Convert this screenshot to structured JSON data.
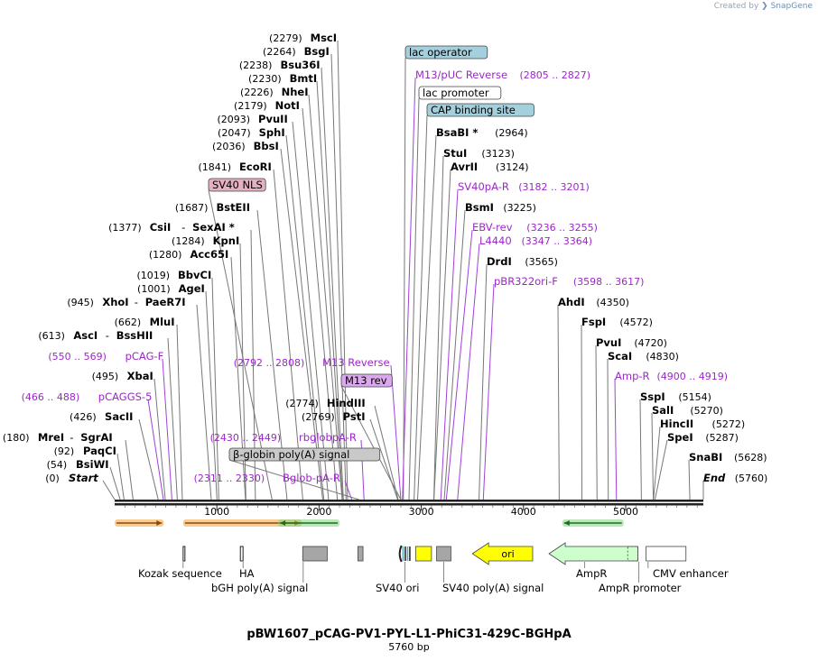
{
  "credit": {
    "prefix": "Created by",
    "brand": "SnapGene"
  },
  "plasmid": {
    "name": "pBW1607_pCAG-PV1-PYL-L1-PhiC31-429C-BGHpA",
    "length_label": "5760 bp",
    "length": 5760
  },
  "axis": {
    "ticks": [
      1000,
      2000,
      3000,
      4000,
      5000
    ],
    "tick_labels": [
      "1000",
      "2000",
      "3000",
      "4000",
      "5000"
    ]
  },
  "colors": {
    "primer": "#9c27c9",
    "enzyme": "#000000",
    "pos": "#000000"
  },
  "labels": [
    {
      "id": "msci",
      "type": "enzyme",
      "name": "MscI",
      "pos": "(2279)",
      "bp": 2279
    },
    {
      "id": "bsgi",
      "type": "enzyme",
      "name": "BsgI",
      "pos": "(2264)",
      "bp": 2264
    },
    {
      "id": "bsu36i",
      "type": "enzyme",
      "name": "Bsu36I",
      "pos": "(2238)",
      "bp": 2238
    },
    {
      "id": "bmti",
      "type": "enzyme",
      "name": "BmtI",
      "pos": "(2230)",
      "bp": 2230
    },
    {
      "id": "nhei",
      "type": "enzyme",
      "name": "NheI",
      "pos": "(2226)",
      "bp": 2226
    },
    {
      "id": "noti",
      "type": "enzyme",
      "name": "NotI",
      "pos": "(2179)",
      "bp": 2179
    },
    {
      "id": "pvuii",
      "type": "enzyme",
      "name": "PvuII",
      "pos": "(2093)",
      "bp": 2093
    },
    {
      "id": "sphi",
      "type": "enzyme",
      "name": "SphI",
      "pos": "(2047)",
      "bp": 2047
    },
    {
      "id": "bbsi",
      "type": "enzyme",
      "name": "BbsI",
      "pos": "(2036)",
      "bp": 2036
    },
    {
      "id": "ecori",
      "type": "enzyme",
      "name": "EcoRI",
      "pos": "(1841)",
      "bp": 1841
    },
    {
      "id": "sv40nls",
      "type": "feature",
      "name": "SV40 NLS",
      "bp": 1540,
      "bg": "#e3b1c0"
    },
    {
      "id": "bsteii",
      "type": "enzyme",
      "name": "BstEII",
      "pos": "(1687)",
      "bp": 1687
    },
    {
      "id": "csii",
      "type": "enzyme",
      "name": "CsiI",
      "name2": "SexAI *",
      "pos": "(1377)",
      "bp": 1377
    },
    {
      "id": "kpni",
      "type": "enzyme",
      "name": "KpnI",
      "pos": "(1284)",
      "bp": 1284
    },
    {
      "id": "acc65i",
      "type": "enzyme",
      "name": "Acc65I",
      "pos": "(1280)",
      "bp": 1280
    },
    {
      "id": "bbvci",
      "type": "enzyme",
      "name": "BbvCI",
      "pos": "(1019)",
      "bp": 1019
    },
    {
      "id": "agei",
      "type": "enzyme",
      "name": "AgeI",
      "pos": "(1001)",
      "bp": 1001
    },
    {
      "id": "xhoi",
      "type": "enzyme",
      "name": "XhoI",
      "name2": "PaeR7I",
      "pos": "(945)",
      "bp": 945
    },
    {
      "id": "mlui",
      "type": "enzyme",
      "name": "MluI",
      "pos": "(662)",
      "bp": 662
    },
    {
      "id": "asci",
      "type": "enzyme",
      "name": "AscI",
      "name2": "BssHII",
      "pos": "(613)",
      "bp": 613
    },
    {
      "id": "pcagf",
      "type": "primer",
      "name": "pCAG-F",
      "pos": "(550 .. 569)",
      "bp": 560
    },
    {
      "id": "xbai",
      "type": "enzyme",
      "name": "XbaI",
      "pos": "(495)",
      "bp": 495
    },
    {
      "id": "pcaggs5",
      "type": "primer",
      "name": "pCAGGS-5",
      "pos": "(466 .. 488)",
      "bp": 477
    },
    {
      "id": "sacii",
      "type": "enzyme",
      "name": "SacII",
      "pos": "(426)",
      "bp": 426
    },
    {
      "id": "mrei",
      "type": "enzyme",
      "name": "MreI",
      "name2": "SgrAI",
      "pos": "(180)",
      "bp": 180
    },
    {
      "id": "paqci",
      "type": "enzyme",
      "name": "PaqCI",
      "pos": "(92)",
      "bp": 92
    },
    {
      "id": "bsiwi",
      "type": "enzyme",
      "name": "BsiWI",
      "pos": "(54)",
      "bp": 54
    },
    {
      "id": "start",
      "type": "enzyme",
      "name": "Start",
      "pos": "(0)",
      "bp": 0,
      "italic": true
    },
    {
      "id": "m13rev_long",
      "type": "primer",
      "name": "M13 Reverse",
      "pos": "(2792 .. 2808)",
      "bp": 2800
    },
    {
      "id": "m13rev",
      "type": "feature",
      "name": "M13 rev",
      "bp": 2800,
      "bg": "#dba8ee"
    },
    {
      "id": "hindiii",
      "type": "enzyme",
      "name": "HindIII",
      "pos": "(2774)",
      "bp": 2774
    },
    {
      "id": "psti",
      "type": "enzyme",
      "name": "PstI",
      "pos": "(2769)",
      "bp": 2769
    },
    {
      "id": "rbglobpar",
      "type": "primer",
      "name": "rbglobpA-R",
      "pos": "(2430 .. 2449)",
      "bp": 2440
    },
    {
      "id": "bglobinpa",
      "type": "feature",
      "name": "β-globin poly(A) signal",
      "bp": 2390,
      "bg": "#c9c9c9"
    },
    {
      "id": "bglobpar",
      "type": "primer",
      "name": "Bglob-pA-R",
      "pos": "(2311 .. 2330)",
      "bp": 2320
    },
    {
      "id": "lacop",
      "type": "feature",
      "name": "lac operator",
      "bp": 2825,
      "bg": "#a4cfdd"
    },
    {
      "id": "m13puc",
      "type": "primer",
      "name": "M13/pUC Reverse",
      "pos": "(2805 .. 2827)",
      "bp": 2816
    },
    {
      "id": "lacprom",
      "type": "feature",
      "name": "lac promoter",
      "bp": 2880,
      "bg": "#ffffff"
    },
    {
      "id": "cap",
      "type": "feature",
      "name": "CAP binding site",
      "bp": 2930,
      "bg": "#a4cfdd"
    },
    {
      "id": "bsabi",
      "type": "enzyme",
      "name": "BsaBI *",
      "pos": "(2964)",
      "bp": 2964
    },
    {
      "id": "stui",
      "type": "enzyme",
      "name": "StuI",
      "pos": "(3123)",
      "bp": 3123
    },
    {
      "id": "avrii",
      "type": "enzyme",
      "name": "AvrII",
      "pos": "(3124)",
      "bp": 3124
    },
    {
      "id": "sv40par",
      "type": "primer",
      "name": "SV40pA-R",
      "pos": "(3182 .. 3201)",
      "bp": 3191
    },
    {
      "id": "bsmi",
      "type": "enzyme",
      "name": "BsmI",
      "pos": "(3225)",
      "bp": 3225
    },
    {
      "id": "ebvrev",
      "type": "primer",
      "name": "EBV-rev",
      "pos": "(3236 .. 3255)",
      "bp": 3245
    },
    {
      "id": "l4440",
      "type": "primer",
      "name": "L4440",
      "pos": "(3347 .. 3364)",
      "bp": 3355
    },
    {
      "id": "drdi",
      "type": "enzyme",
      "name": "DrdI",
      "pos": "(3565)",
      "bp": 3565
    },
    {
      "id": "pbr322",
      "type": "primer",
      "name": "pBR322ori-F",
      "pos": "(3598 .. 3617)",
      "bp": 3607
    },
    {
      "id": "ahdi",
      "type": "enzyme",
      "name": "AhdI",
      "pos": "(4350)",
      "bp": 4350
    },
    {
      "id": "fspi",
      "type": "enzyme",
      "name": "FspI",
      "pos": "(4572)",
      "bp": 4572
    },
    {
      "id": "pvui",
      "type": "enzyme",
      "name": "PvuI",
      "pos": "(4720)",
      "bp": 4720
    },
    {
      "id": "scai",
      "type": "enzyme",
      "name": "ScaI",
      "pos": "(4830)",
      "bp": 4830
    },
    {
      "id": "ampr_p",
      "type": "primer",
      "name": "Amp-R",
      "pos": "(4900 .. 4919)",
      "bp": 4910
    },
    {
      "id": "sspi",
      "type": "enzyme",
      "name": "SspI",
      "pos": "(5154)",
      "bp": 5154
    },
    {
      "id": "sali",
      "type": "enzyme",
      "name": "SalI",
      "pos": "(5270)",
      "bp": 5270
    },
    {
      "id": "hincii",
      "type": "enzyme",
      "name": "HincII",
      "pos": "(5272)",
      "bp": 5272
    },
    {
      "id": "spei",
      "type": "enzyme",
      "name": "SpeI",
      "pos": "(5287)",
      "bp": 5287
    },
    {
      "id": "snabi",
      "type": "enzyme",
      "name": "SnaBI",
      "pos": "(5628)",
      "bp": 5628
    },
    {
      "id": "end",
      "type": "enzyme",
      "name": "End",
      "pos": "(5760)",
      "bp": 5760,
      "italic": true
    }
  ],
  "orfs": [
    {
      "start": 0,
      "end": 480,
      "dir": "fwd",
      "color": "#f6a23a"
    },
    {
      "start": 670,
      "end": 1830,
      "dir": "fwd",
      "color": "#f6a23a"
    },
    {
      "start": 1600,
      "end": 2200,
      "dir": "rev",
      "color": "#7ed37e"
    },
    {
      "start": 4380,
      "end": 4980,
      "dir": "rev",
      "color": "#7ed37e"
    }
  ],
  "features_map": [
    {
      "name": "Kozak sequence",
      "start": 670,
      "end": 684,
      "shape": "tick",
      "color": "#000000",
      "label_bp": 670
    },
    {
      "name": "HA",
      "start": 1230,
      "end": 1256,
      "shape": "tick",
      "color": "#000000",
      "label_bp": 1256
    },
    {
      "name": "bGH poly(A) signal",
      "start": 1840,
      "end": 2080,
      "shape": "box",
      "color": "#a6a6a6",
      "label_bp": 1845
    },
    {
      "name": "",
      "start": 2380,
      "end": 2430,
      "shape": "box",
      "color": "#a6a6a6",
      "label_bp": null
    },
    {
      "name": "SV40 ori",
      "start": 2780,
      "end": 2915,
      "shape": "ori",
      "color": "#5fa6b6",
      "label_bp": 2840
    },
    {
      "name": "",
      "start": 2945,
      "end": 3100,
      "shape": "box",
      "color": "#ffff00",
      "label_bp": null
    },
    {
      "name": "SV40 poly(A) signal",
      "start": 3150,
      "end": 3290,
      "shape": "box",
      "color": "#a6a6a6",
      "label_bp": 3220
    },
    {
      "name": "ori",
      "start": 3500,
      "end": 4090,
      "shape": "arrow-left",
      "color": "#ffff00",
      "label_bp": null,
      "inner_label": true
    },
    {
      "name": "AmpR",
      "start": 4250,
      "end": 5120,
      "shape": "arrow-left",
      "color": "#ccffcc",
      "label_bp": 4600
    },
    {
      "name": "AmpR promoter",
      "start": 5020,
      "end": 5120,
      "shape": "dash",
      "color": "#ccffcc",
      "label_bp": 5130
    },
    {
      "name": "CMV enhancer",
      "start": 5200,
      "end": 5590,
      "shape": "box",
      "color": "#ffffff",
      "label_bp": 5220
    }
  ]
}
